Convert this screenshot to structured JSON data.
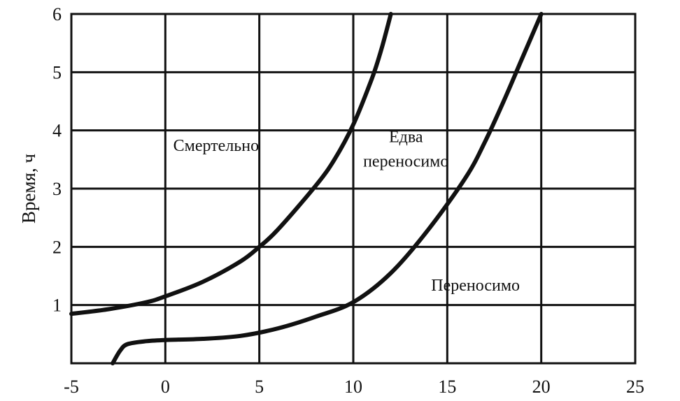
{
  "chart_data": {
    "type": "line",
    "ylabel": "Время, ч",
    "xlabel": "",
    "xlim": [
      -5,
      25
    ],
    "ylim": [
      0,
      6
    ],
    "x_ticks": [
      -5,
      0,
      5,
      10,
      15,
      20,
      25
    ],
    "y_ticks": [
      1,
      2,
      3,
      4,
      5,
      6
    ],
    "x_tick_labels": [
      "-5",
      "0",
      "5",
      "10",
      "15",
      "20",
      "25"
    ],
    "y_tick_labels": [
      "1",
      "2",
      "3",
      "4",
      "5",
      "6"
    ],
    "grid": true,
    "series": [
      {
        "x": [
          -5,
          -3,
          -1,
          0,
          2,
          4,
          5,
          6,
          8,
          9,
          10,
          11,
          11.5,
          12
        ],
        "y": [
          0.85,
          0.93,
          1.05,
          1.15,
          1.4,
          1.75,
          2.0,
          2.3,
          3.05,
          3.5,
          4.1,
          4.9,
          5.4,
          6.0
        ]
      },
      {
        "x": [
          -2.8,
          -2.4,
          -2.0,
          -1.0,
          0,
          2,
          4,
          6,
          8,
          10,
          12,
          14,
          16,
          17,
          18,
          19,
          20
        ],
        "y": [
          0.0,
          0.22,
          0.33,
          0.38,
          0.4,
          0.42,
          0.47,
          0.6,
          0.8,
          1.05,
          1.55,
          2.3,
          3.2,
          3.8,
          4.5,
          5.25,
          6.0
        ]
      }
    ],
    "annotations": [
      {
        "text": "Смертельно",
        "x": 2.7,
        "y": 3.65
      },
      {
        "text": "Едва",
        "x": 12.8,
        "y": 3.8
      },
      {
        "text": "переносимо",
        "x": 12.8,
        "y": 3.38
      },
      {
        "text": "Переносимо",
        "x": 16.5,
        "y": 1.25
      }
    ]
  }
}
